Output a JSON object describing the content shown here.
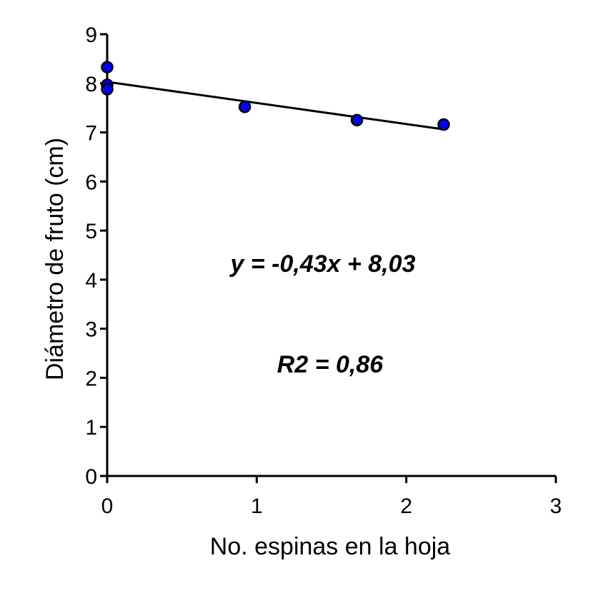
{
  "chart_data": {
    "type": "scatter",
    "title": "",
    "xlabel": "No. espinas en la hoja",
    "ylabel": "Diámetro de fruto (cm)",
    "xlim": [
      0,
      3
    ],
    "ylim": [
      0,
      9
    ],
    "xticks": [
      "0",
      "1",
      "2",
      "3"
    ],
    "yticks": [
      "0",
      "1",
      "2",
      "3",
      "4",
      "5",
      "6",
      "7",
      "8",
      "9"
    ],
    "points": [
      {
        "x": 0,
        "y": 8.33
      },
      {
        "x": 0,
        "y": 7.97
      },
      {
        "x": 0,
        "y": 7.88
      },
      {
        "x": 0.92,
        "y": 7.52
      },
      {
        "x": 1.67,
        "y": 7.25
      },
      {
        "x": 2.25,
        "y": 7.16
      }
    ],
    "trendline": {
      "slope": -0.43,
      "intercept": 8.03,
      "x_range": [
        0,
        2.25
      ]
    },
    "annotations": [
      "y = -0,43x + 8,03",
      "R2 = 0,86"
    ],
    "grid": false,
    "legend": "none",
    "colors": {
      "point_fill": "#0000ff",
      "point_stroke": "#000000",
      "line": "#000000"
    }
  }
}
